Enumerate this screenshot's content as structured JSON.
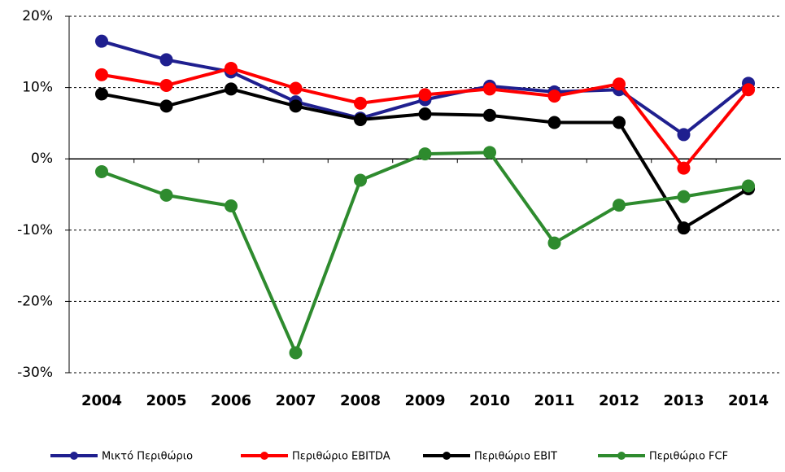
{
  "chart_data": {
    "type": "line",
    "categories": [
      "2004",
      "2005",
      "2006",
      "2007",
      "2008",
      "2009",
      "2010",
      "2011",
      "2012",
      "2013",
      "2014"
    ],
    "series": [
      {
        "name": "Μικτό Περιθώριο",
        "color": "#1f1f8f",
        "values": [
          16.5,
          13.9,
          12.2,
          8.0,
          5.7,
          8.3,
          10.2,
          9.4,
          9.7,
          3.4,
          10.6
        ]
      },
      {
        "name": "Περιθώριο EBITDA",
        "color": "#ff0000",
        "values": [
          11.8,
          10.3,
          12.7,
          9.9,
          7.8,
          9.0,
          9.8,
          8.8,
          10.5,
          -1.3,
          9.7
        ]
      },
      {
        "name": "Περιθώριο EBIT",
        "color": "#000000",
        "values": [
          9.1,
          7.4,
          9.8,
          7.4,
          5.5,
          6.3,
          6.1,
          5.1,
          5.1,
          -9.7,
          -4.2
        ]
      },
      {
        "name": "Περιθώριο FCF",
        "color": "#2e8b2e",
        "values": [
          -1.8,
          -5.1,
          -6.6,
          -27.2,
          -3.0,
          0.7,
          0.9,
          -11.8,
          -6.5,
          -5.3,
          -3.8
        ]
      }
    ],
    "ylim": [
      -30,
      20
    ],
    "yticks": [
      {
        "value": 20,
        "label": "20%"
      },
      {
        "value": 10,
        "label": "10%"
      },
      {
        "value": 0,
        "label": "0%"
      },
      {
        "value": -10,
        "label": "-10%"
      },
      {
        "value": -20,
        "label": "-20%"
      },
      {
        "value": -30,
        "label": "-30%"
      }
    ],
    "grid": true
  }
}
